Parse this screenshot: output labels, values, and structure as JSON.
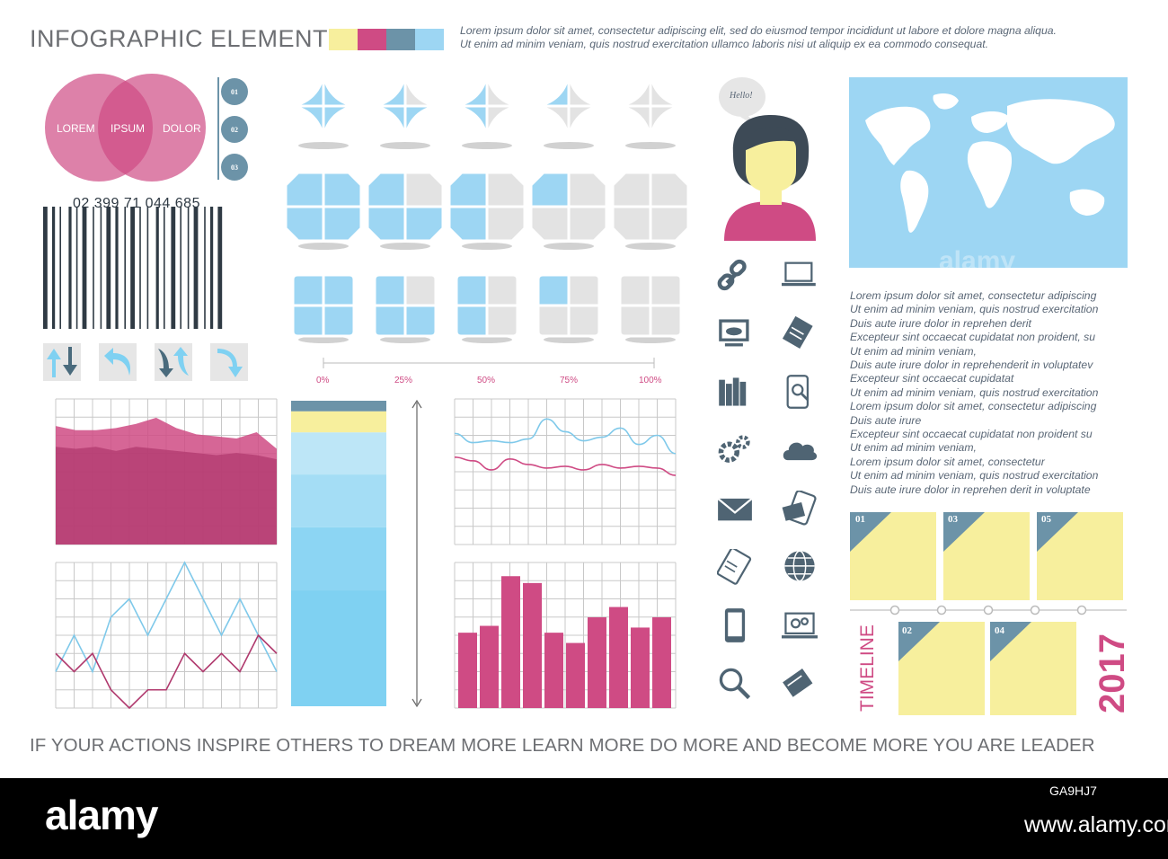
{
  "header": {
    "title": "INFOGRAPHIC ELEMENTS",
    "palette": [
      "#f7ef9d",
      "#cf4b84",
      "#6c93a8",
      "#9dd6f3"
    ],
    "intro_line1": "Lorem ipsum dolor sit amet, consectetur adipiscing elit, sed do eiusmod tempor incididunt ut labore et dolore magna aliqua.",
    "intro_line2": "Ut enim ad minim veniam, quis nostrud exercitation ullamco laboris nisi ut aliquip ex ea commodo consequat."
  },
  "venn": {
    "left": "LOREM",
    "center": "IPSUM",
    "right": "DOLOR"
  },
  "steps": [
    "01",
    "02",
    "03"
  ],
  "barcode": {
    "number": "02 399 71 044 685"
  },
  "arrow_icons": [
    "up-down-arrows-icon",
    "undo-arrow-icon",
    "swap-arrows-icon",
    "redo-arrow-icon"
  ],
  "progress_shapes": {
    "quarters_filled": [
      4,
      3,
      2,
      1,
      0
    ],
    "shapes": [
      "circle",
      "hexagon",
      "square"
    ]
  },
  "percent_scale": [
    "0%",
    "25%",
    "50%",
    "75%",
    "100%"
  ],
  "avatar": {
    "bubble": "Hello!"
  },
  "icons": [
    "link-icon",
    "laptop-icon",
    "cloud-monitor-icon",
    "notebook-icon",
    "books-icon",
    "phone-search-icon",
    "gears-icon",
    "cloud-icon",
    "mail-icon",
    "mobile-mail-icon",
    "tablet-icon",
    "globe-icon",
    "smartphone-icon",
    "laptop-gears-icon",
    "search-icon",
    "mail-stack-icon"
  ],
  "right_text": [
    "Lorem ipsum dolor sit amet, consectetur adipiscing",
    "Ut enim ad minim veniam, quis nostrud exercitation",
    "Duis aute irure dolor  in reprehen derit",
    "Excepteur sint occaecat cupidatat non proident,  su",
    "Ut enim ad minim veniam,",
    "Duis aute irure dolor in reprehenderit in  voluptatev",
    "Excepteur  sint  occaecat  cupidatat",
    "Ut enim ad minim veniam, quis nostrud exercitation",
    "Lorem ipsum dolor sit amet, consectetur adipiscing",
    "Duis aute irure",
    "Excepteur sint occaecat cupidatat non proident  su",
    "Ut enim ad minim veniam,",
    "Lorem ipsum dolor sit amet, consectetur",
    "Ut enim ad minim veniam, quis nostrud exercitation",
    "Duis aute irure dolor  in reprehen derit in  voluptate"
  ],
  "timeline": {
    "word": "TIMELINE",
    "year": "2017",
    "top_cards": [
      "01",
      "03",
      "05"
    ],
    "bottom_cards": [
      "02",
      "04"
    ]
  },
  "quote": "IF YOUR ACTIONS INSPIRE OTHERS TO DREAM MORE LEARN MORE DO MORE AND BECOME MORE YOU ARE LEADER",
  "footer": {
    "logo": "alamy",
    "image_id": "GA9HJ7",
    "site": "www.alamy.com"
  },
  "chart_data": [
    {
      "type": "area",
      "x": [
        1,
        2,
        3,
        4,
        5,
        6,
        7,
        8,
        9,
        10,
        11,
        12
      ],
      "series": [
        {
          "values": [
            0.57,
            0.55,
            0.55,
            0.56,
            0.58,
            0.61,
            0.56,
            0.53,
            0.52,
            0.51,
            0.54,
            0.46
          ]
        },
        {
          "values": [
            0.47,
            0.46,
            0.47,
            0.45,
            0.47,
            0.46,
            0.45,
            0.44,
            0.43,
            0.44,
            0.43,
            0.41
          ]
        }
      ],
      "ylim": [
        0,
        0.7
      ],
      "grid": true
    },
    {
      "type": "bar",
      "stacked": true,
      "categories": [
        "1"
      ],
      "series": [
        {
          "values": [
            22
          ]
        },
        {
          "values": [
            12
          ]
        },
        {
          "values": [
            10
          ]
        },
        {
          "values": [
            8
          ]
        },
        {
          "values": [
            4
          ]
        },
        {
          "values": [
            2
          ]
        }
      ],
      "colors": [
        "#7fd1f2",
        "#8cd5f3",
        "#a4ddf5",
        "#bde6f7",
        "#f7ef9d",
        "#6c93a8"
      ]
    },
    {
      "type": "line",
      "x": [
        1,
        2,
        3,
        4,
        5,
        6,
        7,
        8,
        9,
        10,
        11,
        12,
        13
      ],
      "series": [
        {
          "values": [
            0.61,
            0.56,
            0.57,
            0.56,
            0.58,
            0.69,
            0.62,
            0.57,
            0.59,
            0.64,
            0.55,
            0.6,
            0.5
          ]
        },
        {
          "values": [
            0.48,
            0.46,
            0.41,
            0.47,
            0.44,
            0.42,
            0.43,
            0.41,
            0.44,
            0.42,
            0.43,
            0.42,
            0.38
          ]
        }
      ],
      "ylim": [
        0,
        0.8
      ],
      "grid": true
    },
    {
      "type": "line",
      "x": [
        1,
        2,
        3,
        4,
        5,
        6,
        7,
        8,
        9,
        10,
        11,
        12,
        13
      ],
      "series": [
        {
          "values": [
            0.2,
            0.4,
            0.2,
            0.5,
            0.6,
            0.4,
            0.6,
            0.8,
            0.6,
            0.4,
            0.6,
            0.4,
            0.2
          ]
        },
        {
          "values": [
            0.3,
            0.2,
            0.3,
            0.1,
            0.0,
            0.1,
            0.1,
            0.3,
            0.2,
            0.3,
            0.2,
            0.4,
            0.3
          ]
        }
      ],
      "ylim": [
        0,
        0.8
      ],
      "grid": true
    },
    {
      "type": "bar",
      "categories": [
        "1",
        "2",
        "3",
        "4",
        "5",
        "6",
        "7",
        "8",
        "9",
        "10"
      ],
      "values": [
        0.44,
        0.48,
        0.77,
        0.73,
        0.44,
        0.38,
        0.53,
        0.59,
        0.47,
        0.53
      ],
      "ylim": [
        0,
        0.85
      ],
      "grid": true
    }
  ]
}
